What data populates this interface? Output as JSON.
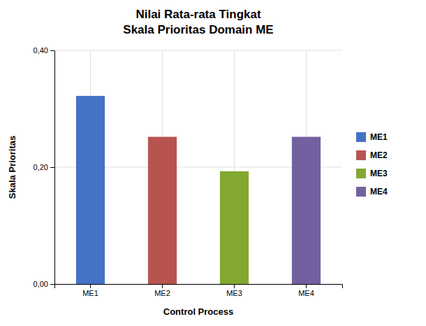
{
  "chart_data": {
    "type": "bar",
    "title": [
      "Nilai Rata-rata Tingkat",
      "Skala Prioritas Domain ME"
    ],
    "xlabel": "Control Process",
    "ylabel": "Skala Prioritas",
    "categories": [
      "ME1",
      "ME2",
      "ME3",
      "ME4"
    ],
    "values": [
      0.322,
      0.252,
      0.193,
      0.252
    ],
    "colors": [
      "#4472C4",
      "#B85450",
      "#82A832",
      "#7360A0"
    ],
    "ylim": [
      0.0,
      0.4
    ],
    "yticks": [
      {
        "value": 0.0,
        "label": "0,00"
      },
      {
        "value": 0.2,
        "label": "0,20"
      },
      {
        "value": 0.4,
        "label": "0,40"
      }
    ],
    "grid": true,
    "legend": "right"
  }
}
